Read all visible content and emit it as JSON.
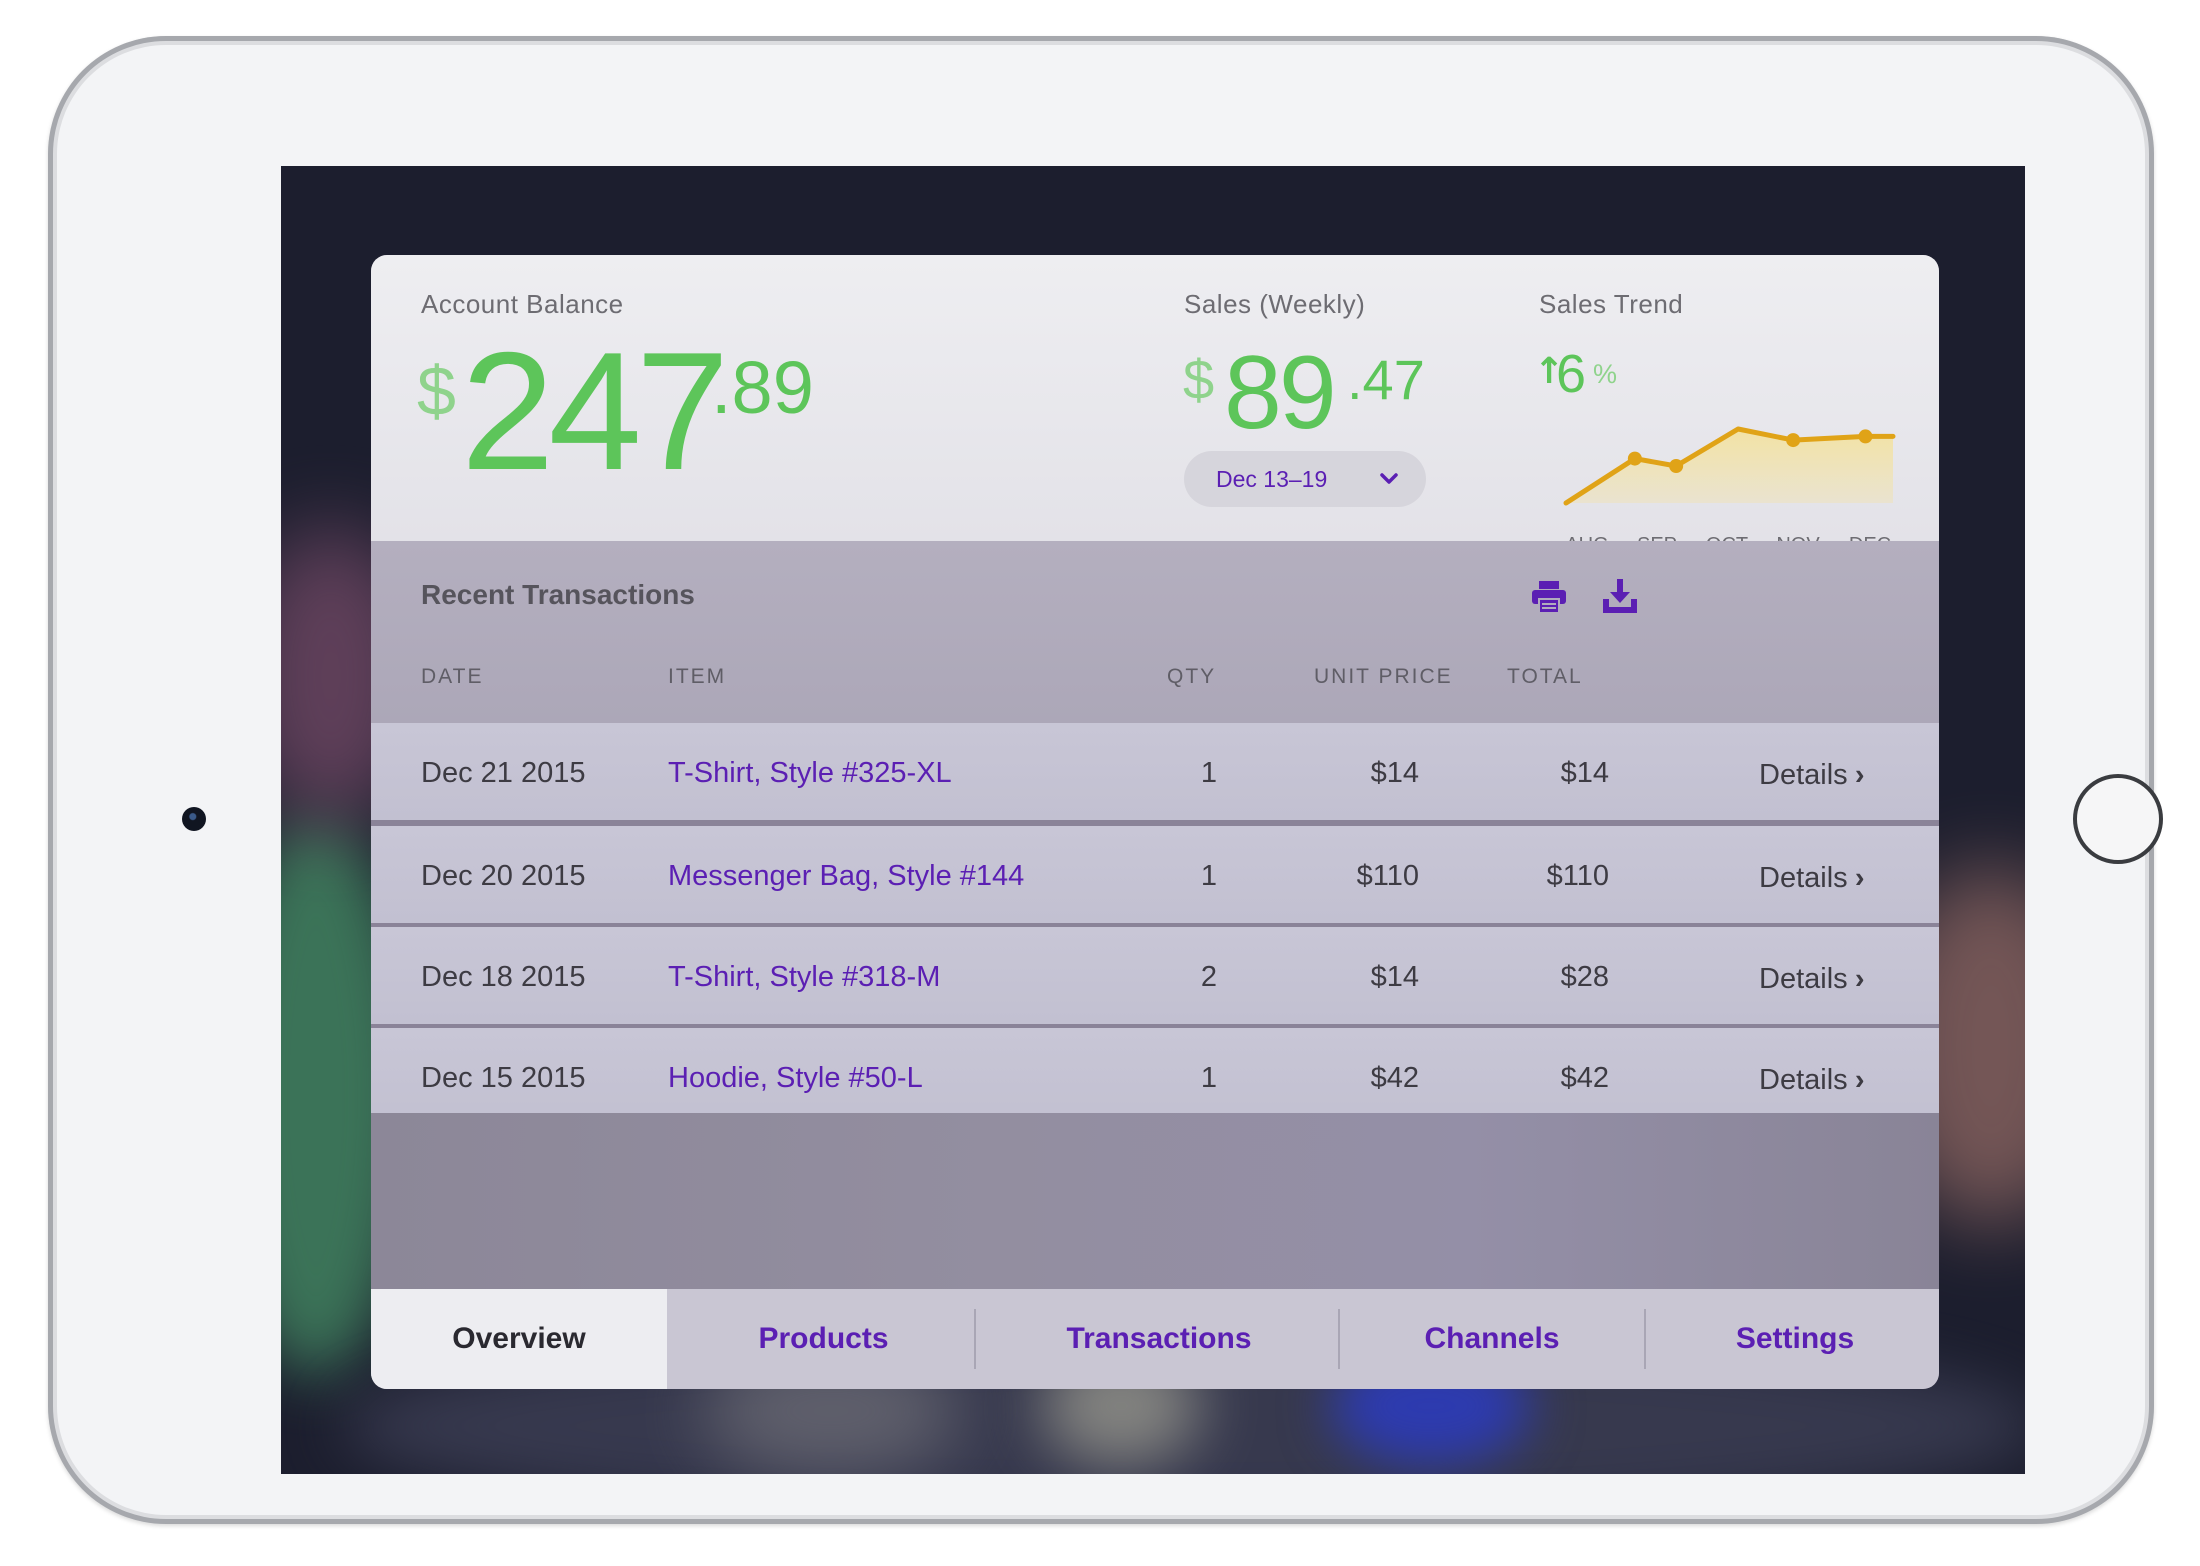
{
  "summary": {
    "account_balance": {
      "label": "Account Balance",
      "currency": "$",
      "whole": "247",
      "decimal": ".89"
    },
    "weekly_sales": {
      "label": "Sales (Weekly)",
      "currency": "$",
      "whole": "89",
      "decimal": ".47",
      "period": "Dec 13–19"
    },
    "sales_trend": {
      "label": "Sales Trend",
      "arrow": "↑",
      "value": "6",
      "unit": "%"
    }
  },
  "chart_data": {
    "type": "area",
    "title": "Sales Trend",
    "categories": [
      "AUG",
      "SEP",
      "OCT",
      "NOV",
      "DEC"
    ],
    "x": [
      0,
      1,
      1.6,
      2.5,
      3.3,
      4.35,
      4.75
    ],
    "values": [
      0,
      0.6,
      0.5,
      1,
      0.85,
      0.9,
      0.9
    ],
    "markers": [
      1,
      2,
      4,
      5
    ],
    "line_color": "#e0a317",
    "fill_color": "#f3e2a0"
  },
  "transactions": {
    "title": "Recent Transactions",
    "actions": {
      "print_icon": "print-icon",
      "download_icon": "download-icon"
    },
    "columns": [
      "DATE",
      "ITEM",
      "QTY",
      "UNIT PRICE",
      "TOTAL"
    ],
    "rows": [
      {
        "date": "Dec 21 2015",
        "item": "T-Shirt, Style #325-XL",
        "qty": "1",
        "unit_price": "$14",
        "total": "$14",
        "details": "Details"
      },
      {
        "date": "Dec 20 2015",
        "item": "Messenger Bag, Style #144",
        "qty": "1",
        "unit_price": "$110",
        "total": "$110",
        "details": "Details"
      },
      {
        "date": "Dec 18 2015",
        "item": "T-Shirt, Style #318-M",
        "qty": "2",
        "unit_price": "$14",
        "total": "$28",
        "details": "Details"
      },
      {
        "date": "Dec 15 2015",
        "item": "Hoodie, Style #50-L",
        "qty": "1",
        "unit_price": "$42",
        "total": "$42",
        "details": "Details"
      }
    ]
  },
  "tabs": [
    {
      "label": "Overview",
      "active": true
    },
    {
      "label": "Products",
      "active": false
    },
    {
      "label": "Transactions",
      "active": false
    },
    {
      "label": "Channels",
      "active": false
    },
    {
      "label": "Settings",
      "active": false
    }
  ],
  "colors": {
    "accent": "#5b1fb3",
    "positive": "#5dc55a",
    "trend_line": "#e0a317"
  }
}
